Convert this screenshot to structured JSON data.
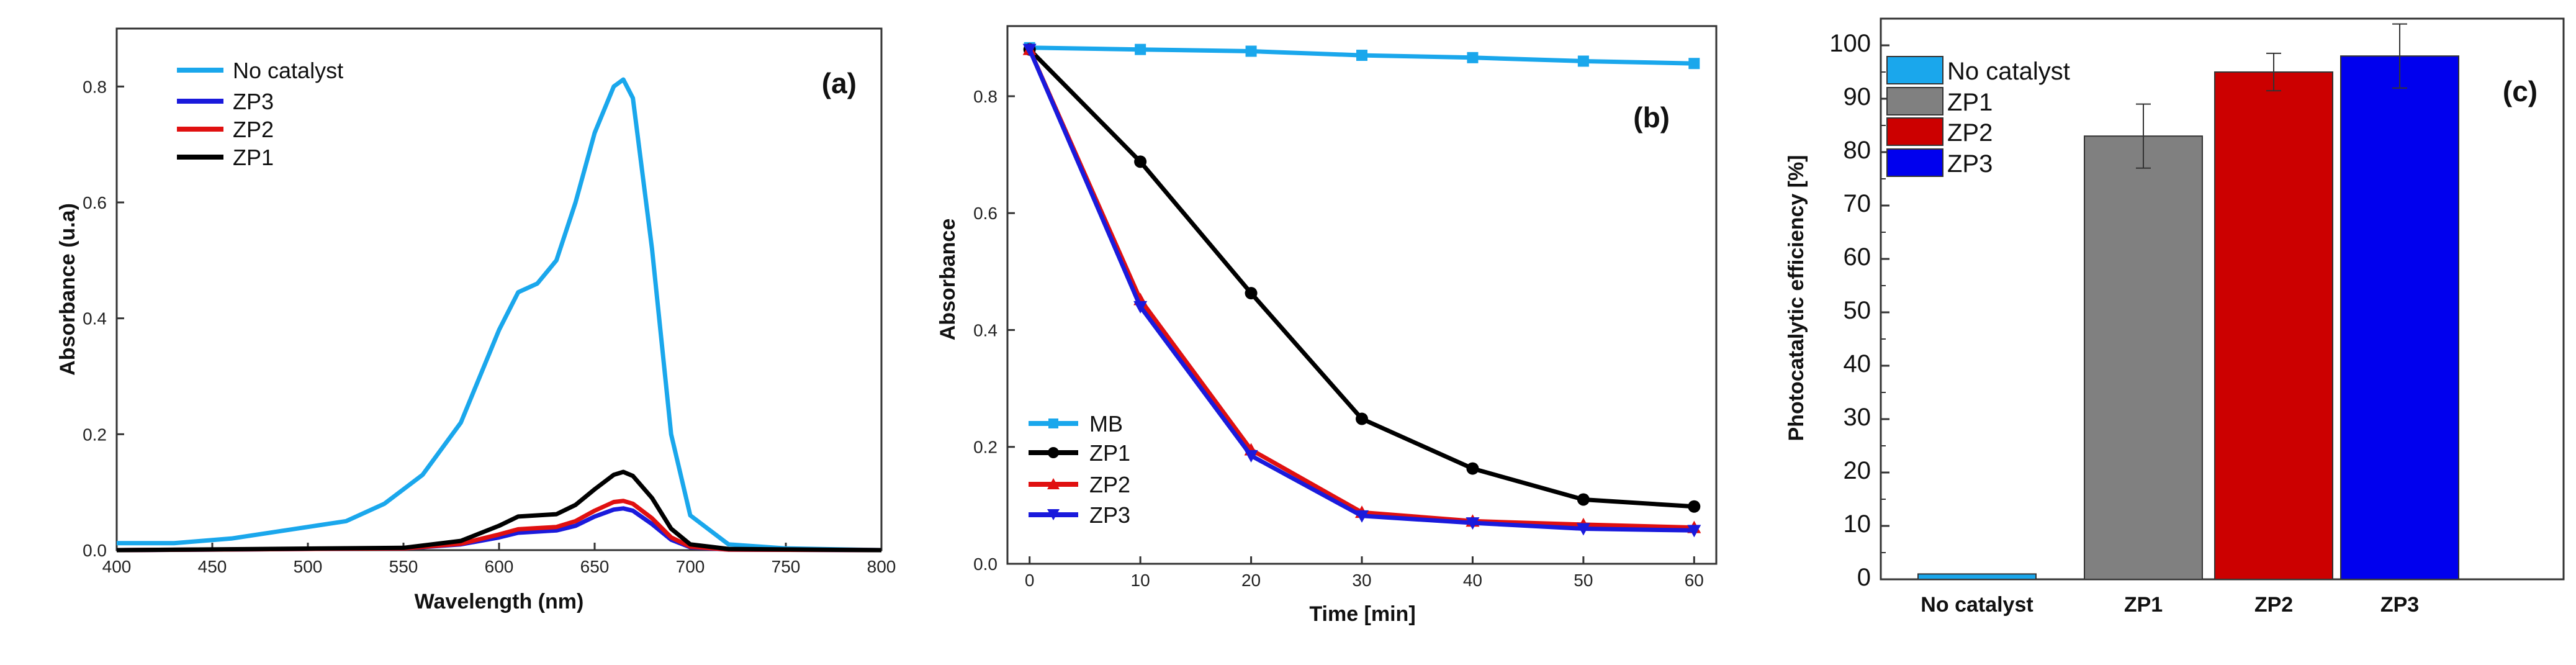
{
  "colors": {
    "no_catalyst": "#1aa7ec",
    "zp1": "#000000",
    "zp2": "#e01010",
    "zp3": "#1a1adc",
    "zp1_bar": "#808080",
    "zp2_bar": "#cc0000",
    "zp3_bar": "#0000ee"
  },
  "chart_data": [
    {
      "type": "line",
      "panel_label": "(a)",
      "xlabel": "Wavelength (nm)",
      "ylabel": "Absorbance (u.a)",
      "xlim": [
        400,
        800
      ],
      "ylim": [
        0,
        0.9
      ],
      "xticks": [
        400,
        450,
        500,
        550,
        600,
        650,
        700,
        750,
        800
      ],
      "yticks": [
        0.0,
        0.2,
        0.4,
        0.6,
        0.8
      ],
      "ytick_labels": [
        "0.0",
        "0.2",
        "0.4",
        "0.6",
        "0.8"
      ],
      "legend": [
        "No catalyst",
        "ZP3",
        "ZP2",
        "ZP1"
      ],
      "series": [
        {
          "name": "No catalyst",
          "color": "#1aa7ec",
          "x": [
            400,
            430,
            460,
            490,
            520,
            540,
            560,
            580,
            600,
            610,
            620,
            630,
            640,
            650,
            660,
            665,
            670,
            680,
            690,
            700,
            720,
            750,
            800
          ],
          "y": [
            0.012,
            0.012,
            0.02,
            0.035,
            0.05,
            0.08,
            0.13,
            0.22,
            0.38,
            0.445,
            0.46,
            0.5,
            0.6,
            0.72,
            0.8,
            0.812,
            0.78,
            0.52,
            0.2,
            0.06,
            0.01,
            0.003,
            0.0
          ]
        },
        {
          "name": "ZP3",
          "color": "#1a1adc",
          "x": [
            400,
            550,
            580,
            600,
            610,
            620,
            630,
            640,
            650,
            660,
            665,
            670,
            680,
            690,
            700,
            720,
            800
          ],
          "y": [
            0.0,
            0.003,
            0.01,
            0.022,
            0.03,
            0.032,
            0.034,
            0.042,
            0.058,
            0.07,
            0.072,
            0.068,
            0.045,
            0.018,
            0.005,
            0.001,
            0.0
          ]
        },
        {
          "name": "ZP2",
          "color": "#e01010",
          "x": [
            400,
            550,
            580,
            600,
            610,
            620,
            630,
            640,
            650,
            660,
            665,
            670,
            680,
            690,
            700,
            720,
            800
          ],
          "y": [
            0.0,
            0.003,
            0.011,
            0.027,
            0.036,
            0.038,
            0.04,
            0.05,
            0.068,
            0.083,
            0.085,
            0.08,
            0.055,
            0.022,
            0.006,
            0.001,
            0.0
          ]
        },
        {
          "name": "ZP1",
          "color": "#000000",
          "x": [
            400,
            550,
            580,
            600,
            610,
            620,
            630,
            640,
            650,
            660,
            665,
            670,
            680,
            690,
            700,
            720,
            800
          ],
          "y": [
            0.0,
            0.004,
            0.016,
            0.042,
            0.058,
            0.06,
            0.062,
            0.078,
            0.105,
            0.13,
            0.135,
            0.128,
            0.09,
            0.037,
            0.01,
            0.002,
            0.0
          ]
        }
      ]
    },
    {
      "type": "line",
      "panel_label": "(b)",
      "xlabel": "Time [min]",
      "ylabel": "Absorbance",
      "xlim": [
        -2,
        62
      ],
      "ylim": [
        0,
        0.92
      ],
      "xticks": [
        0,
        10,
        20,
        30,
        40,
        50,
        60
      ],
      "yticks": [
        0.0,
        0.2,
        0.4,
        0.6,
        0.8
      ],
      "ytick_labels": [
        "0.0",
        "0.2",
        "0.4",
        "0.6",
        "0.8"
      ],
      "legend": [
        "MB",
        "ZP1",
        "ZP2",
        "ZP3"
      ],
      "series": [
        {
          "name": "MB",
          "color": "#1aa7ec",
          "marker": "square",
          "x": [
            0,
            10,
            20,
            30,
            40,
            50,
            60
          ],
          "y": [
            0.883,
            0.88,
            0.877,
            0.87,
            0.866,
            0.86,
            0.856
          ]
        },
        {
          "name": "ZP1",
          "color": "#000000",
          "marker": "circle",
          "x": [
            0,
            10,
            20,
            30,
            40,
            50,
            60
          ],
          "y": [
            0.88,
            0.688,
            0.463,
            0.248,
            0.163,
            0.11,
            0.098
          ]
        },
        {
          "name": "ZP2",
          "color": "#e01010",
          "marker": "triangle-up",
          "x": [
            0,
            10,
            20,
            30,
            40,
            50,
            60
          ],
          "y": [
            0.88,
            0.452,
            0.195,
            0.088,
            0.073,
            0.067,
            0.062
          ]
        },
        {
          "name": "ZP3",
          "color": "#1a1adc",
          "marker": "triangle-down",
          "x": [
            0,
            10,
            20,
            30,
            40,
            50,
            60
          ],
          "y": [
            0.88,
            0.44,
            0.185,
            0.082,
            0.07,
            0.06,
            0.057
          ]
        }
      ]
    },
    {
      "type": "bar",
      "panel_label": "(c)",
      "xlabel": "",
      "ylabel": "Photocatalytic efficiency [%]",
      "ylim": [
        0,
        105
      ],
      "yticks": [
        0,
        10,
        20,
        30,
        40,
        50,
        60,
        70,
        80,
        90,
        100
      ],
      "ytick_labels": [
        "0",
        "10",
        "20",
        "30",
        "40",
        "50",
        "60",
        "70",
        "80",
        "90",
        "100"
      ],
      "categories": [
        "No catalyst",
        "ZP1",
        "ZP2",
        "ZP3"
      ],
      "values": [
        1,
        83,
        95,
        98
      ],
      "errors": [
        0,
        6,
        3.5,
        6
      ],
      "legend": [
        "No catalyst",
        "ZP1",
        "ZP2",
        "ZP3"
      ]
    }
  ]
}
